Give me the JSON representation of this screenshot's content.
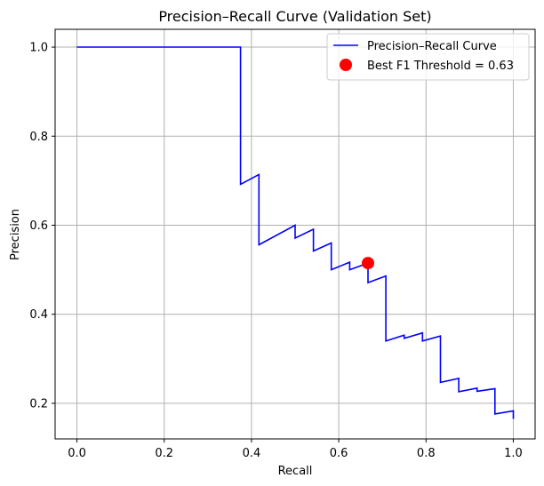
{
  "chart_data": {
    "type": "line",
    "title": "Precision–Recall Curve (Validation Set)",
    "xlabel": "Recall",
    "ylabel": "Precision",
    "xlim": [
      -0.05,
      1.05
    ],
    "ylim": [
      0.12,
      1.04
    ],
    "xticks": [
      "0.0",
      "0.2",
      "0.4",
      "0.6",
      "0.8",
      "1.0"
    ],
    "yticks": [
      "0.2",
      "0.4",
      "0.6",
      "0.8",
      "1.0"
    ],
    "grid": true,
    "legend_position": "upper right",
    "series": [
      {
        "name": "Precision–Recall Curve",
        "color": "#0000ff",
        "x": [
          0.0,
          0.375,
          0.375,
          0.417,
          0.417,
          0.5,
          0.5,
          0.542,
          0.542,
          0.583,
          0.583,
          0.625,
          0.625,
          0.667,
          0.667,
          0.708,
          0.708,
          0.75,
          0.75,
          0.792,
          0.792,
          0.833,
          0.833,
          0.875,
          0.875,
          0.917,
          0.917,
          0.958,
          0.958,
          1.0,
          1.0
        ],
        "y": [
          1.0,
          1.0,
          0.692,
          0.714,
          0.556,
          0.6,
          0.571,
          0.591,
          0.542,
          0.56,
          0.5,
          0.517,
          0.5,
          0.515,
          0.471,
          0.486,
          0.34,
          0.353,
          0.346,
          0.358,
          0.34,
          0.351,
          0.247,
          0.256,
          0.226,
          0.234,
          0.227,
          0.233,
          0.176,
          0.183,
          0.165
        ]
      }
    ],
    "points": [
      {
        "name": "Best F1 Threshold = 0.63",
        "color": "#ff0000",
        "x": 0.667,
        "y": 0.515
      }
    ]
  }
}
